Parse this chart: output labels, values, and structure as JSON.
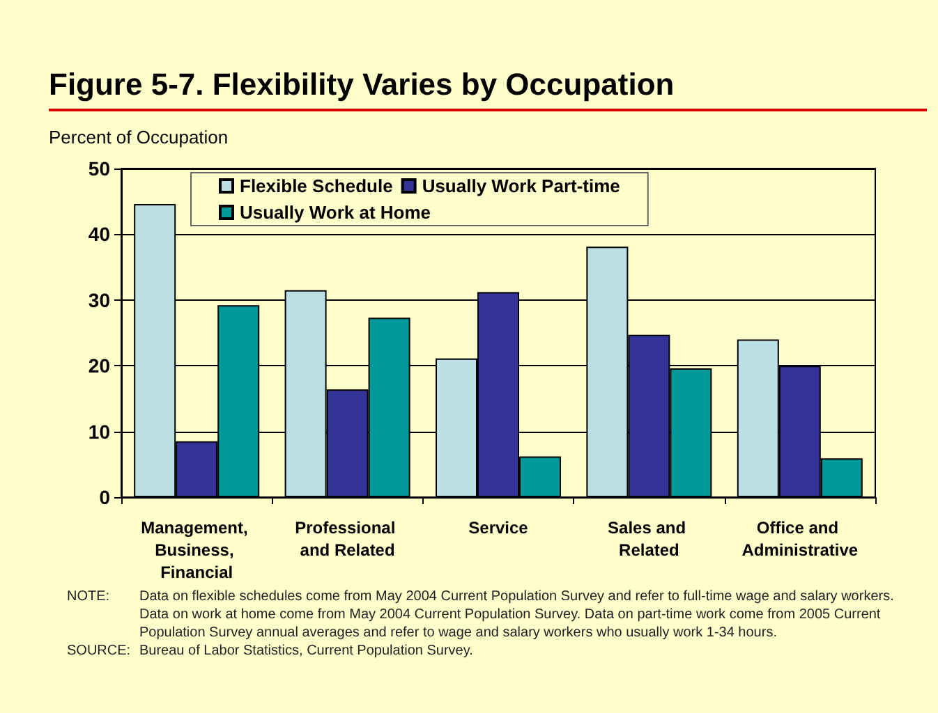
{
  "chart_data": {
    "type": "bar",
    "title": "Figure 5-7. Flexibility Varies by Occupation",
    "ylabel": "Percent of Occupation",
    "categories": [
      "Management, Business, Financial",
      "Professional and Related",
      "Service",
      "Sales and Related",
      "Office and Administrative"
    ],
    "series": [
      {
        "name": "Flexible Schedule",
        "color": "#bce0e6",
        "values": [
          44.6,
          31.5,
          21.1,
          38.1,
          24.0
        ]
      },
      {
        "name": "Usually Work Part-time",
        "color": "#333399",
        "values": [
          8.5,
          16.4,
          31.2,
          24.7,
          20.0
        ]
      },
      {
        "name": "Usually Work at Home",
        "color": "#009999",
        "values": [
          29.2,
          27.3,
          6.2,
          19.6,
          5.9
        ]
      }
    ],
    "ylim": [
      0,
      50
    ],
    "yticks": [
      0,
      10,
      20,
      30,
      40,
      50
    ],
    "grid": "y",
    "legend": "top",
    "annotations": [
      "NOTE: Data on flexible schedules come from May 2004 Current Population Survey and refer to full-time wage and salary workers.  Data on work at home come from May 2004 Current Population Survey.  Data on part-time work come from 2005 Current Population Survey annual averages and refer to wage and salary workers who usually work 1-34 hours.",
      "SOURCE: Bureau of Labor Statistics, Current Population Survey."
    ]
  }
}
